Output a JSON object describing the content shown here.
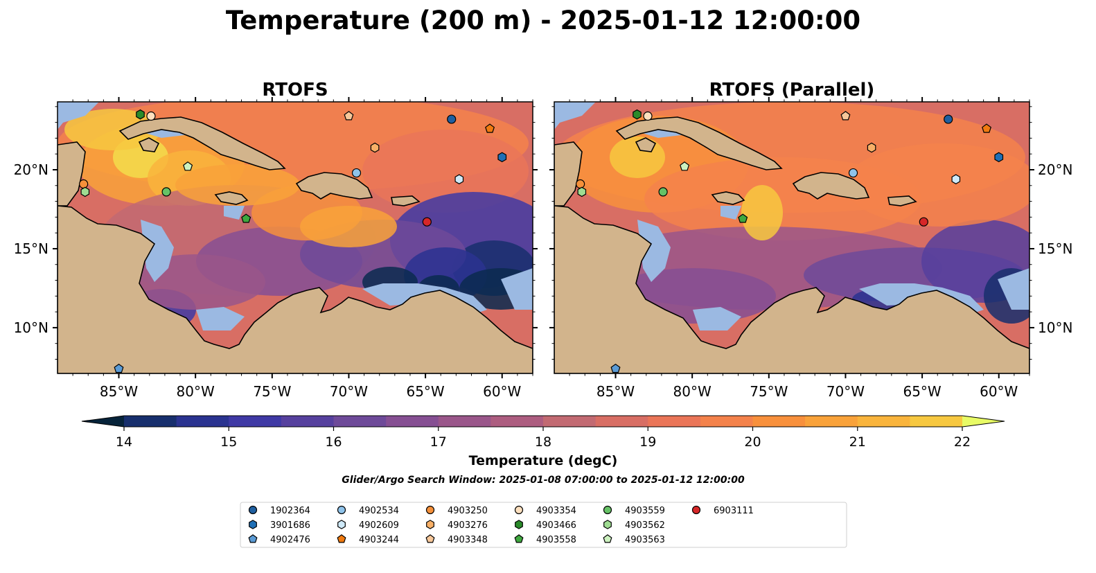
{
  "title": "Temperature (200 m) - 2025-01-12 12:00:00",
  "panels": [
    {
      "title": "RTOFS",
      "variant": "rtofs"
    },
    {
      "title": "RTOFS (Parallel)",
      "variant": "parallel"
    }
  ],
  "lon_labels": [
    "85°W",
    "80°W",
    "75°W",
    "70°W",
    "65°W",
    "60°W"
  ],
  "lat_labels": [
    "20°N",
    "15°N",
    "10°N"
  ],
  "colorbar": {
    "label": "Temperature (degC)",
    "ticks": [
      "14",
      "15",
      "16",
      "17",
      "18",
      "19",
      "20",
      "21",
      "22"
    ],
    "colors": [
      "#0b2a4f",
      "#172f6d",
      "#2a3390",
      "#3f39a5",
      "#56409e",
      "#6e4a99",
      "#864f93",
      "#9a568a",
      "#ad5d80",
      "#c26a72",
      "#d86e64",
      "#ea7558",
      "#f4824b",
      "#f8903c",
      "#f9a23a",
      "#f9b43c",
      "#f7c840",
      "#f3dd4b",
      "#e9f05e"
    ],
    "under_color": "#06233a",
    "over_color": "#e8fb66"
  },
  "search_window": "Glider/Argo Search Window: 2025-01-08 07:00:00 to 2025-01-12 12:00:00",
  "floats": [
    {
      "id": "1902364",
      "marker": "circle",
      "color": "#1f5fa0"
    },
    {
      "id": "3901686",
      "marker": "hexagon",
      "color": "#1f6fb5"
    },
    {
      "id": "4902476",
      "marker": "pentagon",
      "color": "#5b9bd5"
    },
    {
      "id": "4902534",
      "marker": "circle",
      "color": "#8fc3ea"
    },
    {
      "id": "4902609",
      "marker": "hexagon",
      "color": "#cfeaf9"
    },
    {
      "id": "4903244",
      "marker": "pentagon",
      "color": "#f07a10"
    },
    {
      "id": "4903250",
      "marker": "circle",
      "color": "#f5903a"
    },
    {
      "id": "4903276",
      "marker": "hexagon",
      "color": "#f8b067"
    },
    {
      "id": "4903348",
      "marker": "pentagon",
      "color": "#f7c89a"
    },
    {
      "id": "4903354",
      "marker": "circle",
      "color": "#fde0bf"
    },
    {
      "id": "4903466",
      "marker": "hexagon",
      "color": "#2a8a2a"
    },
    {
      "id": "4903558",
      "marker": "pentagon",
      "color": "#3fa83f"
    },
    {
      "id": "4903559",
      "marker": "circle",
      "color": "#66c266"
    },
    {
      "id": "4903562",
      "marker": "hexagon",
      "color": "#9fdc92"
    },
    {
      "id": "4903563",
      "marker": "pentagon",
      "color": "#cdf2c0"
    },
    {
      "id": "6903111",
      "marker": "circle",
      "color": "#d62728"
    }
  ],
  "float_positions": [
    {
      "id": "1902364",
      "lon": -63.3,
      "lat": 23.2
    },
    {
      "id": "3901686",
      "lon": -60.0,
      "lat": 20.8
    },
    {
      "id": "4902476",
      "lon": -85.0,
      "lat": 7.4
    },
    {
      "id": "4902534",
      "lon": -69.5,
      "lat": 19.8
    },
    {
      "id": "4902609",
      "lon": -62.8,
      "lat": 19.4
    },
    {
      "id": "4903244",
      "lon": -60.8,
      "lat": 22.6
    },
    {
      "id": "4903250",
      "lon": -87.3,
      "lat": 19.1
    },
    {
      "id": "4903276",
      "lon": -68.3,
      "lat": 21.4
    },
    {
      "id": "4903348",
      "lon": -70.0,
      "lat": 23.4
    },
    {
      "id": "4903354",
      "lon": -82.9,
      "lat": 23.4
    },
    {
      "id": "4903466",
      "lon": -83.6,
      "lat": 23.5
    },
    {
      "id": "4903558",
      "lon": -76.7,
      "lat": 16.9
    },
    {
      "id": "4903559",
      "lon": -81.9,
      "lat": 18.6
    },
    {
      "id": "4903562",
      "lon": -87.2,
      "lat": 18.6
    },
    {
      "id": "4903563",
      "lon": -80.5,
      "lat": 20.2
    },
    {
      "id": "6903111",
      "lon": -64.9,
      "lat": 16.7
    }
  ]
}
